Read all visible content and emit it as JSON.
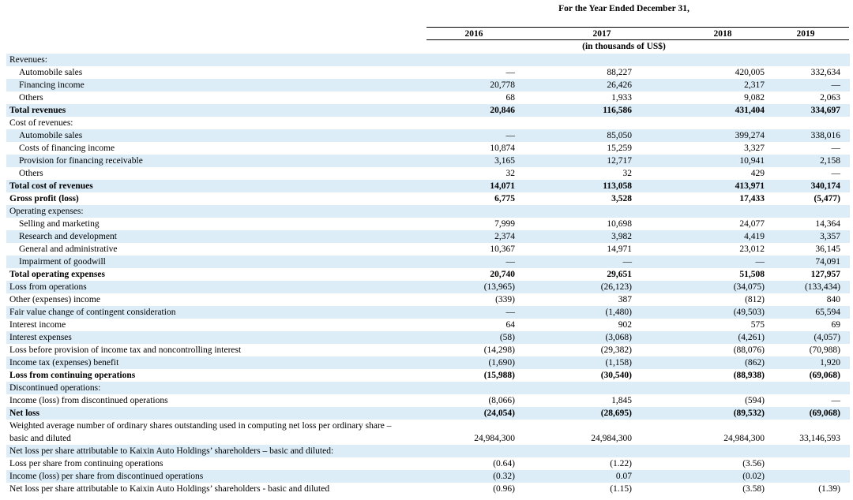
{
  "header": {
    "title": "For the Year Ended December 31,",
    "years": [
      "2016",
      "2017",
      "2018",
      "2019"
    ],
    "units": "(in thousands of US$)"
  },
  "table": {
    "rows": [
      {
        "label": "Revenues:",
        "values": [
          null,
          null,
          null,
          null
        ]
      },
      {
        "label": "Automobile sales",
        "indent": true,
        "values": [
          "—",
          "88,227",
          "420,005",
          "332,634"
        ]
      },
      {
        "label": "Financing income",
        "indent": true,
        "values": [
          "20,778",
          "26,426",
          "2,317",
          "—"
        ]
      },
      {
        "label": "Others",
        "indent": true,
        "values": [
          "68",
          "1,933",
          "9,082",
          "2,063"
        ]
      },
      {
        "label": "Total revenues",
        "bold": true,
        "values": [
          "20,846",
          "116,586",
          "431,404",
          "334,697"
        ]
      },
      {
        "label": "Cost of revenues:",
        "values": [
          null,
          null,
          null,
          null
        ]
      },
      {
        "label": "Automobile sales",
        "indent": true,
        "values": [
          "—",
          "85,050",
          "399,274",
          "338,016"
        ]
      },
      {
        "label": "Costs of financing income",
        "indent": true,
        "values": [
          "10,874",
          "15,259",
          "3,327",
          "—"
        ]
      },
      {
        "label": "Provision for financing receivable",
        "indent": true,
        "values": [
          "3,165",
          "12,717",
          "10,941",
          "2,158"
        ]
      },
      {
        "label": "Others",
        "indent": true,
        "values": [
          "32",
          "32",
          "429",
          "—"
        ]
      },
      {
        "label": "Total cost of revenues",
        "bold": true,
        "values": [
          "14,071",
          "113,058",
          "413,971",
          "340,174"
        ]
      },
      {
        "label": "Gross profit (loss)",
        "bold": true,
        "values": [
          "6,775",
          "3,528",
          "17,433",
          "(5,477)"
        ]
      },
      {
        "label": "Operating expenses:",
        "values": [
          null,
          null,
          null,
          null
        ]
      },
      {
        "label": "Selling and marketing",
        "indent": true,
        "values": [
          "7,999",
          "10,698",
          "24,077",
          "14,364"
        ]
      },
      {
        "label": "Research and development",
        "indent": true,
        "values": [
          "2,374",
          "3,982",
          "4,419",
          "3,357"
        ]
      },
      {
        "label": "General and administrative",
        "indent": true,
        "values": [
          "10,367",
          "14,971",
          "23,012",
          "36,145"
        ]
      },
      {
        "label": "Impairment of goodwill",
        "indent": true,
        "values": [
          "—",
          "—",
          "—",
          "74,091"
        ]
      },
      {
        "label": "Total operating expenses",
        "bold": true,
        "values": [
          "20,740",
          "29,651",
          "51,508",
          "127,957"
        ]
      },
      {
        "label": "Loss from operations",
        "values": [
          "(13,965)",
          "(26,123)",
          "(34,075)",
          "(133,434)"
        ]
      },
      {
        "label": "Other (expenses) income",
        "values": [
          "(339)",
          "387",
          "(812)",
          "840"
        ]
      },
      {
        "label": "Fair value change of contingent consideration",
        "values": [
          "—",
          "(1,480)",
          "(49,503)",
          "65,594"
        ]
      },
      {
        "label": "Interest income",
        "values": [
          "64",
          "902",
          "575",
          "69"
        ]
      },
      {
        "label": "Interest expenses",
        "values": [
          "(58)",
          "(3,068)",
          "(4,261)",
          "(4,057)"
        ]
      },
      {
        "label": "Loss before provision of income tax and noncontrolling interest",
        "values": [
          "(14,298)",
          "(29,382)",
          "(88,076)",
          "(70,988)"
        ]
      },
      {
        "label": "Income tax (expenses) benefit",
        "values": [
          "(1,690)",
          "(1,158)",
          "(862)",
          "1,920"
        ]
      },
      {
        "label": "Loss from continuing operations",
        "bold": true,
        "values": [
          "(15,988)",
          "(30,540)",
          "(88,938)",
          "(69,068)"
        ]
      },
      {
        "label": "Discontinued operations:",
        "values": [
          null,
          null,
          null,
          null
        ]
      },
      {
        "label": "Income (loss) from discontinued operations",
        "values": [
          "(8,066)",
          "1,845",
          "(594)",
          "—"
        ]
      },
      {
        "label": "Net loss",
        "bold": true,
        "values": [
          "(24,054)",
          "(28,695)",
          "(89,532)",
          "(69,068)"
        ]
      },
      {
        "label": "Weighted average number of ordinary shares outstanding used in computing net loss per ordinary share – basic and diluted",
        "double": true,
        "values": [
          "24,984,300",
          "24,984,300",
          "24,984,300",
          "33,146,593"
        ]
      },
      {
        "label": "Net loss per share attributable to Kaixin Auto Holdings’ shareholders – basic and diluted:",
        "values": [
          null,
          null,
          null,
          null
        ]
      },
      {
        "label": "Loss per share from continuing operations",
        "values": [
          "(0.64)",
          "(1.22)",
          "(3.56)",
          null
        ]
      },
      {
        "label": "Income (loss) per share from discontinued operations",
        "values": [
          "(0.32)",
          "0.07",
          "(0.02)",
          null
        ]
      },
      {
        "label": "Net loss per share attributable to Kaixin Auto Holdings’ shareholders - basic and diluted",
        "values": [
          "(0.96)",
          "(1.15)",
          "(3.58)",
          "(1.39)"
        ]
      }
    ]
  }
}
